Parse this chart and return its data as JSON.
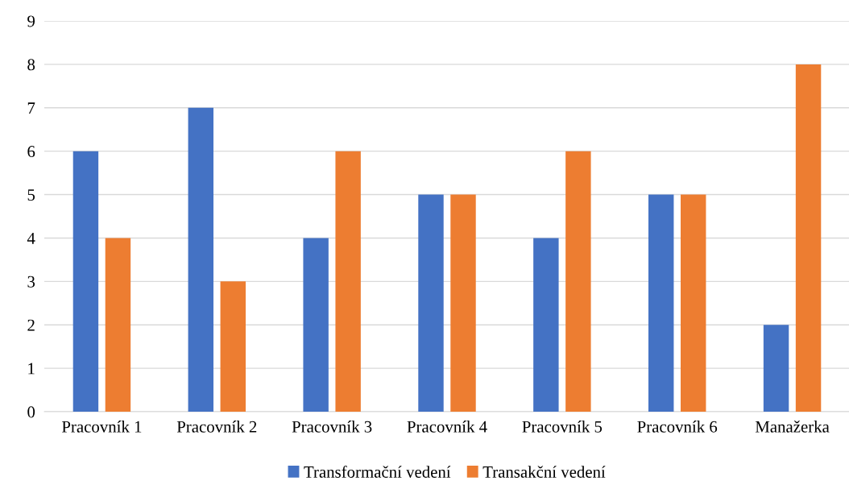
{
  "chart_data": {
    "type": "bar",
    "categories": [
      "Pracovník 1",
      "Pracovník 2",
      "Pracovník 3",
      "Pracovník 4",
      "Pracovník 5",
      "Pracovník 6",
      "Manažerka"
    ],
    "series": [
      {
        "name": "Transformační vedení",
        "color": "#4472c4",
        "values": [
          6,
          7,
          4,
          5,
          4,
          5,
          2
        ]
      },
      {
        "name": "Transakční vedení",
        "color": "#ed7d31",
        "values": [
          4,
          3,
          6,
          5,
          6,
          5,
          8
        ]
      }
    ],
    "ylim": [
      0,
      9
    ],
    "yticks": [
      0,
      1,
      2,
      3,
      4,
      5,
      6,
      7,
      8,
      9
    ],
    "grid": "y",
    "legend": "bottom"
  }
}
